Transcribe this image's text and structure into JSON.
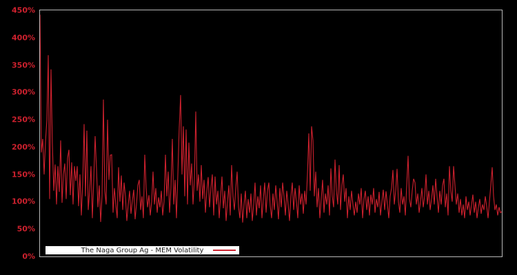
{
  "chart_data": {
    "type": "line",
    "title": "",
    "legend_label": "The Naga Group Ag - MEM Volatility",
    "legend_position": "bottom-left-inside",
    "grid": false,
    "ylim": [
      0,
      450
    ],
    "ylabel_ticks": [
      "450%",
      "400%",
      "350%",
      "300%",
      "250%",
      "200%",
      "150%",
      "100%",
      "50%",
      "0%"
    ],
    "ytick_unit": "percent",
    "colors": {
      "line": "#ce212e",
      "tick_text": "#ce212e",
      "plot_border": "#b9b9b9",
      "background": "#000000",
      "legend_bg": "#ffffff",
      "legend_border": "#000000",
      "legend_text": "#1a1a1a"
    },
    "values_percent": [
      442,
      190,
      215,
      150,
      210,
      250,
      368,
      105,
      342,
      205,
      120,
      168,
      95,
      165,
      118,
      212,
      98,
      150,
      170,
      105,
      180,
      195,
      112,
      172,
      95,
      165,
      138,
      165,
      92,
      150,
      75,
      135,
      242,
      110,
      230,
      85,
      120,
      165,
      70,
      140,
      220,
      160,
      90,
      130,
      63,
      110,
      287,
      120,
      95,
      250,
      140,
      185,
      186,
      80,
      125,
      95,
      70,
      163,
      100,
      148,
      85,
      135,
      110,
      65,
      95,
      120,
      78,
      102,
      122,
      68,
      95,
      130,
      140,
      85,
      110,
      70,
      186,
      125,
      90,
      112,
      75,
      100,
      155,
      95,
      125,
      80,
      108,
      90,
      120,
      75,
      100,
      186,
      110,
      155,
      80,
      125,
      215,
      95,
      140,
      70,
      150,
      235,
      295,
      150,
      238,
      110,
      232,
      95,
      208,
      130,
      170,
      95,
      140,
      265,
      120,
      150,
      100,
      167,
      105,
      140,
      80,
      120,
      145,
      90,
      125,
      150,
      75,
      146,
      95,
      120,
      70,
      110,
      146,
      88,
      120,
      65,
      100,
      130,
      75,
      167,
      110,
      85,
      125,
      155,
      90,
      70,
      115,
      62,
      95,
      120,
      70,
      105,
      80,
      115,
      65,
      95,
      135,
      75,
      110,
      88,
      130,
      70,
      105,
      135,
      80,
      120,
      135,
      92,
      70,
      115,
      85,
      130,
      100,
      68,
      125,
      90,
      135,
      110,
      75,
      120,
      95,
      65,
      110,
      135,
      85,
      125,
      100,
      70,
      130,
      95,
      115,
      78,
      120,
      95,
      150,
      225,
      120,
      238,
      212,
      110,
      155,
      90,
      125,
      70,
      105,
      140,
      80,
      115,
      95,
      130,
      75,
      161,
      110,
      90,
      177,
      120,
      95,
      167,
      85,
      130,
      150,
      100,
      125,
      70,
      110,
      85,
      120,
      95,
      75,
      100,
      80,
      115,
      95,
      125,
      70,
      105,
      120,
      85,
      110,
      75,
      113,
      95,
      125,
      80,
      105,
      90,
      118,
      75,
      100,
      122,
      85,
      119,
      95,
      70,
      110,
      125,
      158,
      95,
      120,
      160,
      100,
      80,
      125,
      95,
      110,
      75,
      130,
      184,
      105,
      90,
      120,
      142,
      135,
      95,
      115,
      80,
      100,
      125,
      90,
      110,
      150,
      95,
      120,
      85,
      105,
      130,
      95,
      142,
      110,
      80,
      120,
      95,
      130,
      142,
      90,
      115,
      75,
      165,
      120,
      100,
      165,
      130,
      95,
      115,
      80,
      105,
      75,
      95,
      70,
      110,
      85,
      100,
      75,
      95,
      113,
      80,
      100,
      70,
      90,
      105,
      78,
      95,
      85,
      110,
      92,
      70,
      100,
      130,
      163,
      110,
      85,
      95,
      75,
      90,
      80,
      82
    ]
  }
}
